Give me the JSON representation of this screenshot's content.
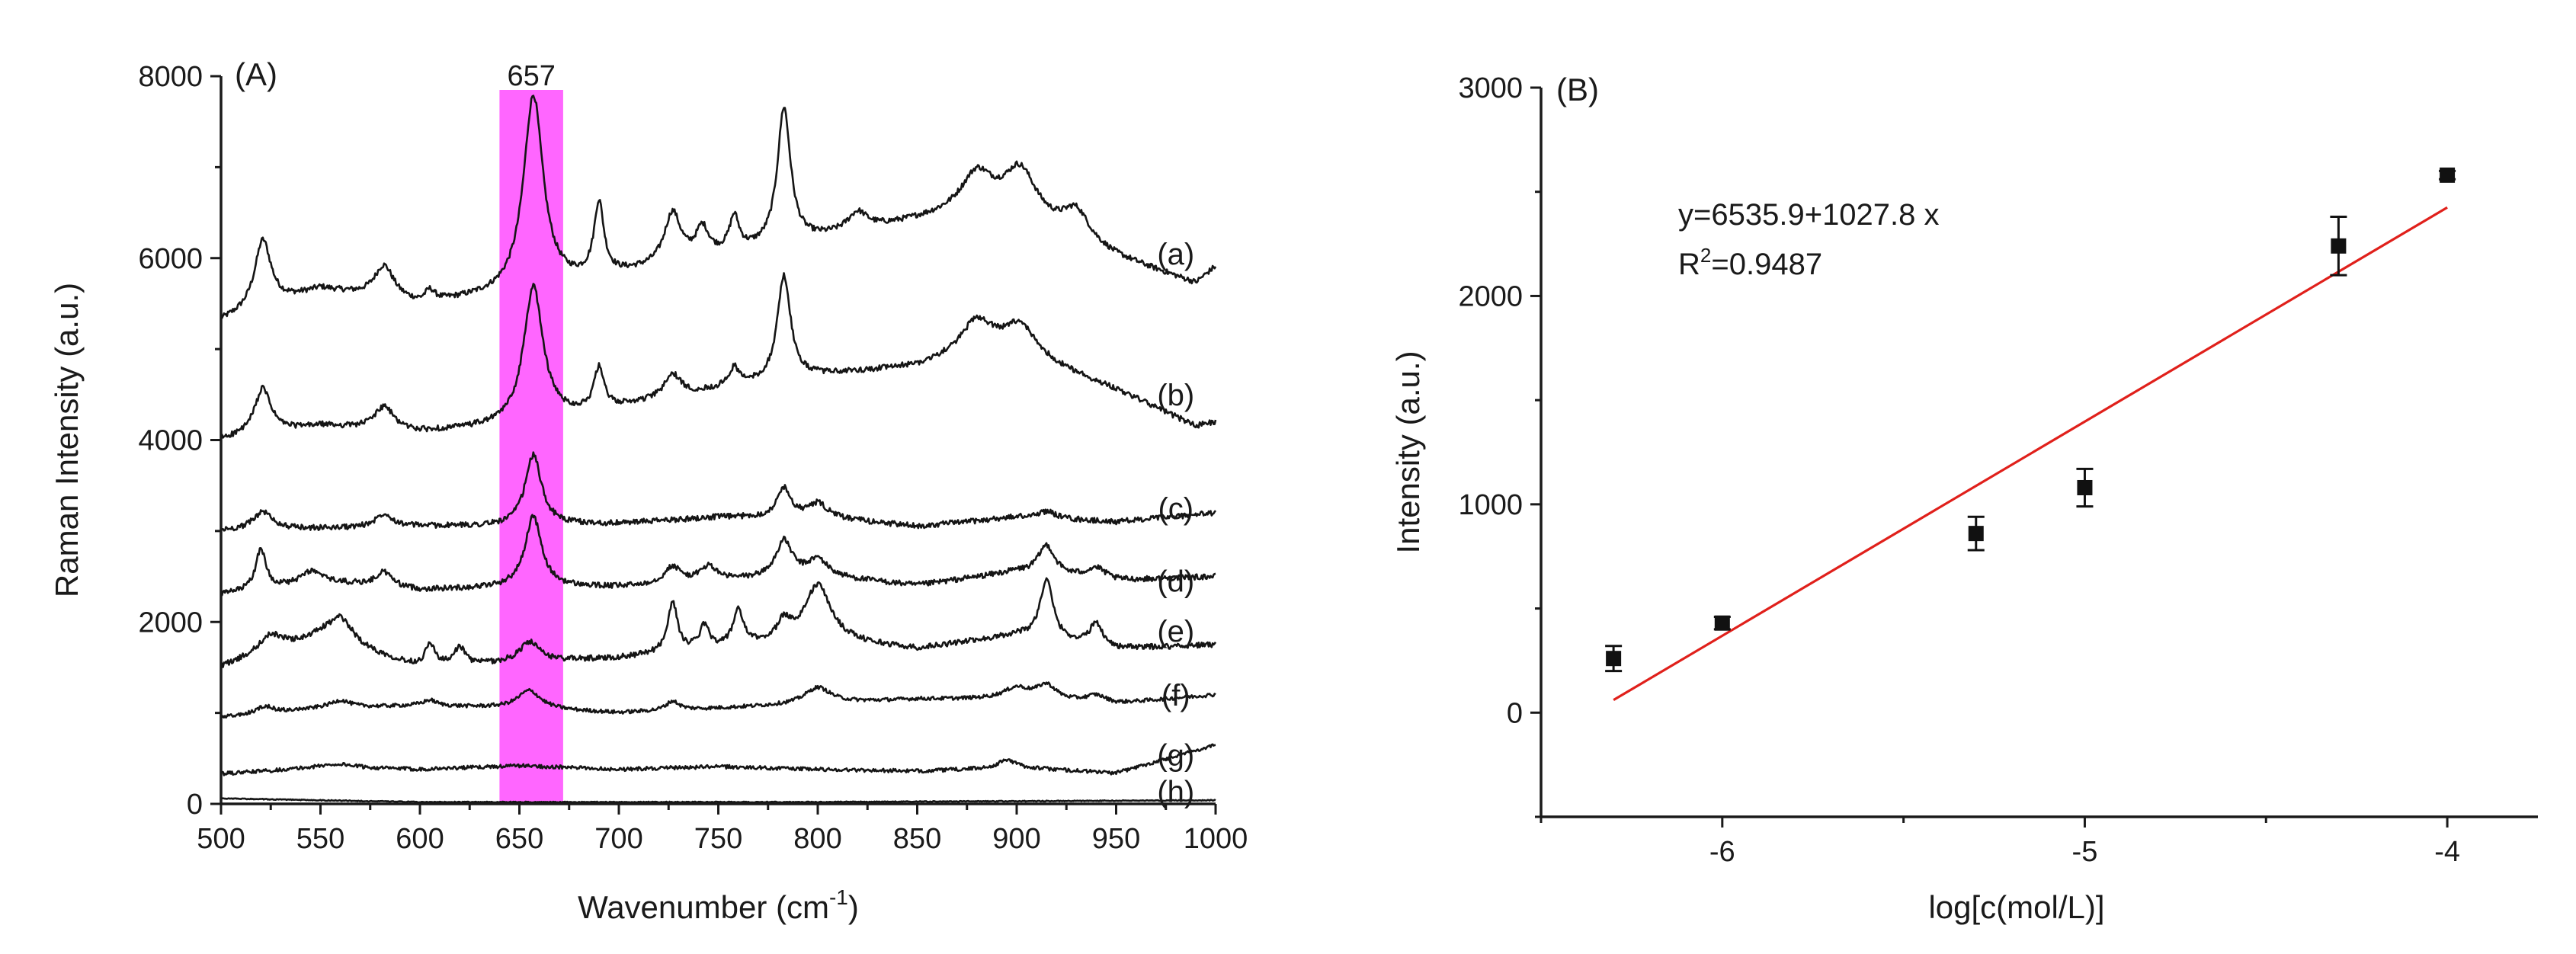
{
  "chart_data": [
    {
      "panel": "(A)",
      "type": "line",
      "xlabel": "Wavenumber (cm",
      "xlabel_sup": "-1",
      "xlabel_close": ")",
      "ylabel": "Raman Intensity (a.u.)",
      "xlim": [
        500,
        1000
      ],
      "ylim": [
        0,
        8000
      ],
      "xticks": [
        500,
        550,
        600,
        650,
        700,
        750,
        800,
        850,
        900,
        950,
        1000
      ],
      "yticks": [
        0,
        2000,
        4000,
        6000,
        8000
      ],
      "highlight": {
        "from": 640,
        "to": 672,
        "label": "657",
        "color": "#ff66ff"
      },
      "series": [
        {
          "name": "(a)",
          "label_at": [
            980,
            6050
          ],
          "baseline": [
            [
              500,
              5300
            ],
            [
              550,
              5650
            ],
            [
              600,
              5480
            ],
            [
              650,
              5600
            ],
            [
              700,
              5800
            ],
            [
              750,
              6000
            ],
            [
              800,
              6200
            ],
            [
              850,
              6400
            ],
            [
              880,
              6500
            ],
            [
              900,
              6450
            ],
            [
              950,
              6000
            ],
            [
              990,
              5720
            ],
            [
              1000,
              5900
            ]
          ],
          "peaks": [
            [
              521,
              750,
              5
            ],
            [
              582,
              360,
              6
            ],
            [
              605,
              120,
              3
            ],
            [
              657,
              2150,
              6
            ],
            [
              690,
              800,
              3
            ],
            [
              727,
              560,
              5
            ],
            [
              742,
              320,
              4
            ],
            [
              758,
              380,
              3
            ],
            [
              783,
              1500,
              4
            ],
            [
              820,
              200,
              6
            ],
            [
              880,
              400,
              10
            ],
            [
              902,
              500,
              10
            ],
            [
              930,
              320,
              8
            ]
          ]
        },
        {
          "name": "(b)",
          "label_at": [
            980,
            4500
          ],
          "baseline": [
            [
              500,
              4000
            ],
            [
              550,
              4150
            ],
            [
              600,
              4080
            ],
            [
              650,
              4150
            ],
            [
              700,
              4350
            ],
            [
              750,
              4550
            ],
            [
              800,
              4700
            ],
            [
              850,
              4800
            ],
            [
              880,
              4950
            ],
            [
              900,
              4950
            ],
            [
              950,
              4550
            ],
            [
              990,
              4150
            ],
            [
              1000,
              4200
            ]
          ],
          "peaks": [
            [
              521,
              500,
              5
            ],
            [
              582,
              250,
              6
            ],
            [
              657,
              1500,
              6
            ],
            [
              690,
              450,
              3
            ],
            [
              727,
              250,
              5
            ],
            [
              758,
              200,
              3
            ],
            [
              783,
              1150,
              4
            ],
            [
              880,
              350,
              10
            ],
            [
              902,
              300,
              10
            ]
          ]
        },
        {
          "name": "(c)",
          "label_at": [
            980,
            3250
          ],
          "baseline": [
            [
              500,
              3000
            ],
            [
              600,
              3050
            ],
            [
              650,
              3050
            ],
            [
              700,
              3080
            ],
            [
              750,
              3150
            ],
            [
              800,
              3150
            ],
            [
              850,
              3050
            ],
            [
              900,
              3150
            ],
            [
              950,
              3100
            ],
            [
              1000,
              3200
            ]
          ],
          "peaks": [
            [
              521,
              200,
              6
            ],
            [
              582,
              150,
              5
            ],
            [
              657,
              780,
              5
            ],
            [
              783,
              320,
              4
            ],
            [
              800,
              150,
              6
            ],
            [
              915,
              80,
              6
            ]
          ]
        },
        {
          "name": "(d)",
          "label_at": [
            980,
            2450
          ],
          "baseline": [
            [
              500,
              2300
            ],
            [
              550,
              2450
            ],
            [
              600,
              2350
            ],
            [
              650,
              2380
            ],
            [
              700,
              2380
            ],
            [
              750,
              2450
            ],
            [
              800,
              2500
            ],
            [
              850,
              2400
            ],
            [
              900,
              2550
            ],
            [
              950,
              2450
            ],
            [
              1000,
              2500
            ]
          ],
          "peaks": [
            [
              520,
              450,
              3
            ],
            [
              545,
              120,
              5
            ],
            [
              582,
              160,
              5
            ],
            [
              657,
              780,
              5
            ],
            [
              727,
              180,
              5
            ],
            [
              745,
              160,
              5
            ],
            [
              783,
              400,
              5
            ],
            [
              800,
              180,
              6
            ],
            [
              915,
              320,
              5
            ],
            [
              940,
              120,
              6
            ]
          ]
        },
        {
          "name": "(e)",
          "label_at": [
            980,
            1900
          ],
          "baseline": [
            [
              500,
              1500
            ],
            [
              550,
              1800
            ],
            [
              600,
              1500
            ],
            [
              650,
              1550
            ],
            [
              700,
              1600
            ],
            [
              750,
              1700
            ],
            [
              800,
              1800
            ],
            [
              850,
              1700
            ],
            [
              900,
              1850
            ],
            [
              950,
              1700
            ],
            [
              1000,
              1750
            ]
          ],
          "peaks": [
            [
              525,
              200,
              8
            ],
            [
              560,
              300,
              8
            ],
            [
              605,
              250,
              3
            ],
            [
              620,
              200,
              3
            ],
            [
              655,
              220,
              6
            ],
            [
              727,
              550,
              3
            ],
            [
              743,
              250,
              3
            ],
            [
              760,
              400,
              3
            ],
            [
              783,
              200,
              4
            ],
            [
              800,
              600,
              8
            ],
            [
              915,
              650,
              4
            ],
            [
              940,
              250,
              4
            ]
          ]
        },
        {
          "name": "(f)",
          "label_at": [
            980,
            1200
          ],
          "baseline": [
            [
              500,
              950
            ],
            [
              550,
              1050
            ],
            [
              600,
              1080
            ],
            [
              650,
              1050
            ],
            [
              700,
              1000
            ],
            [
              750,
              1050
            ],
            [
              800,
              1100
            ],
            [
              850,
              1150
            ],
            [
              900,
              1150
            ],
            [
              950,
              1100
            ],
            [
              1000,
              1200
            ]
          ],
          "peaks": [
            [
              522,
              80,
              5
            ],
            [
              560,
              80,
              6
            ],
            [
              605,
              60,
              4
            ],
            [
              655,
              200,
              7
            ],
            [
              727,
              100,
              4
            ],
            [
              800,
              180,
              8
            ],
            [
              900,
              120,
              8
            ],
            [
              915,
              160,
              6
            ],
            [
              940,
              80,
              6
            ]
          ]
        },
        {
          "name": "(g)",
          "label_at": [
            980,
            540
          ],
          "baseline": [
            [
              500,
              330
            ],
            [
              550,
              400
            ],
            [
              600,
              380
            ],
            [
              650,
              420
            ],
            [
              700,
              380
            ],
            [
              750,
              410
            ],
            [
              800,
              380
            ],
            [
              850,
              360
            ],
            [
              900,
              400
            ],
            [
              950,
              340
            ],
            [
              1000,
              650
            ]
          ],
          "peaks": [
            [
              560,
              40,
              10
            ],
            [
              895,
              90,
              5
            ]
          ]
        },
        {
          "name": "(h)",
          "label_at": [
            980,
            140
          ],
          "baseline": [
            [
              500,
              60
            ],
            [
              600,
              20
            ],
            [
              700,
              20
            ],
            [
              800,
              20
            ],
            [
              900,
              30
            ],
            [
              1000,
              40
            ]
          ],
          "peaks": []
        }
      ]
    },
    {
      "panel": "(B)",
      "type": "scatter",
      "xlabel": "log[c(mol/L)]",
      "ylabel": "Intensity (a.u.)",
      "xlim": [
        -6.5,
        -3.75
      ],
      "ylim": [
        -500,
        3000
      ],
      "xticks": [
        -6,
        -5,
        -4
      ],
      "yticks": [
        0,
        1000,
        2000,
        3000
      ],
      "points": [
        {
          "x": -6.3,
          "y": 260,
          "err": 60
        },
        {
          "x": -6.0,
          "y": 430,
          "err": 30
        },
        {
          "x": -5.3,
          "y": 860,
          "err": 80
        },
        {
          "x": -5.0,
          "y": 1080,
          "err": 90
        },
        {
          "x": -4.3,
          "y": 2240,
          "err": 140
        },
        {
          "x": -4.0,
          "y": 2580,
          "err": 20
        }
      ],
      "fit": {
        "intercept": 6535.9,
        "slope": 1027.8,
        "x_from": -6.3,
        "x_to": -4.0,
        "color": "#e0201b"
      },
      "equation": "y=6535.9+1027.8 x",
      "r2_prefix": "R",
      "r2_sup": "2",
      "r2_value": "=0.9487"
    }
  ]
}
